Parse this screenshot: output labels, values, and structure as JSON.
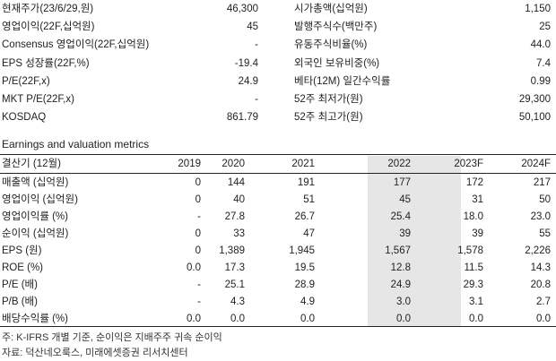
{
  "overview": {
    "left": [
      {
        "label": "현재주가(23/6/29,원)",
        "value": "46,300"
      },
      {
        "label": "영업이익(22F,십억원)",
        "value": "45"
      },
      {
        "label": "Consensus 영업이익(22F,십억원)",
        "value": "-"
      },
      {
        "label": "EPS 성장률(22F,%)",
        "value": "-19.4"
      },
      {
        "label": "P/E(22F,x)",
        "value": "24.9"
      },
      {
        "label": "MKT P/E(22F,x)",
        "value": "-"
      },
      {
        "label": "KOSDAQ",
        "value": "861.79"
      }
    ],
    "right": [
      {
        "label": "시가총액(십억원)",
        "value": "1,150"
      },
      {
        "label": "발행주식수(백만주)",
        "value": "25"
      },
      {
        "label": "유동주식비율(%)",
        "value": "44.0"
      },
      {
        "label": "외국인 보유비중(%)",
        "value": "7.4"
      },
      {
        "label": "베타(12M) 일간수익률",
        "value": "0.99"
      },
      {
        "label": "52주 최저가(원)",
        "value": "29,300"
      },
      {
        "label": "52주 최고가(원)",
        "value": "50,100"
      }
    ]
  },
  "metrics": {
    "title": "Earnings and valuation metrics",
    "header": [
      "결산기 (12월)",
      "2019",
      "2020",
      "2021",
      "2022",
      "2023F",
      "2024F"
    ],
    "highlight_column": "2022",
    "highlight_color": "#e6e6e6",
    "rows": [
      [
        "매출액 (십억원)",
        "0",
        "144",
        "191",
        "177",
        "172",
        "217"
      ],
      [
        "영업이익 (십억원)",
        "0",
        "40",
        "51",
        "45",
        "31",
        "50"
      ],
      [
        "영업이익률 (%)",
        "-",
        "27.8",
        "26.7",
        "25.4",
        "18.0",
        "23.0"
      ],
      [
        "순이익 (십억원)",
        "0",
        "33",
        "47",
        "39",
        "39",
        "55"
      ],
      [
        "EPS (원)",
        "0",
        "1,389",
        "1,945",
        "1,567",
        "1,578",
        "2,226"
      ],
      [
        "ROE (%)",
        "0.0",
        "17.3",
        "19.5",
        "12.8",
        "11.5",
        "14.3"
      ],
      [
        "P/E (배)",
        "-",
        "25.1",
        "28.9",
        "24.9",
        "29.3",
        "20.8"
      ],
      [
        "P/B (배)",
        "-",
        "4.3",
        "4.9",
        "3.0",
        "3.1",
        "2.7"
      ],
      [
        "배당수익률 (%)",
        "0.0",
        "0.0",
        "0.0",
        "0.0",
        "0.0",
        "0.0"
      ]
    ]
  },
  "notes": [
    "주: K-IFRS 개별 기준, 순이익은 지배주주 귀속 순이익",
    "자료: 덕산네오룩스, 미래에셋증권 리서치센터"
  ]
}
